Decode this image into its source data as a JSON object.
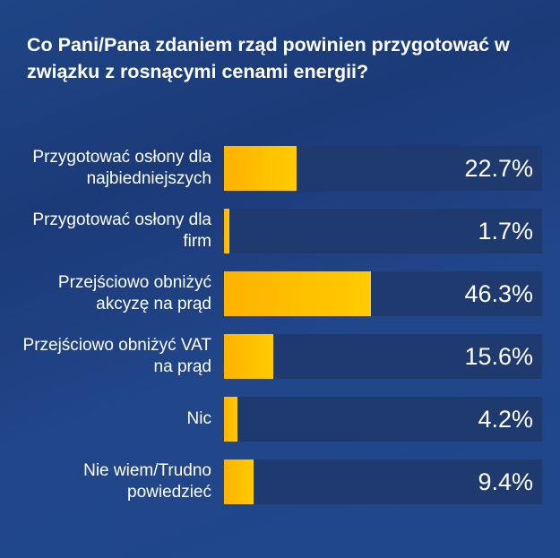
{
  "title": "Co Pani/Pana zdaniem rząd powinien przygotować w związku z rosnącymi cenami energii?",
  "colors": {
    "background": "#1f4586",
    "track": "#1f3a6f",
    "fill_start": "#ffb300",
    "fill_end": "#ffcc00",
    "text": "#ffffff"
  },
  "rows": [
    {
      "label": "Przygotować osłony dla najbiedniejszych",
      "value": 22.7,
      "display": "22.7%"
    },
    {
      "label": "Przygotować osłony dla firm",
      "value": 1.7,
      "display": "1.7%"
    },
    {
      "label": "Przejściowo obniżyć akcyzę na prąd",
      "value": 46.3,
      "display": "46.3%"
    },
    {
      "label": "Przejściowo obniżyć VAT na prąd",
      "value": 15.6,
      "display": "15.6%"
    },
    {
      "label": "Nic",
      "value": 4.2,
      "display": "4.2%"
    },
    {
      "label": "Nie wiem/Trudno powiedzieć",
      "value": 9.4,
      "display": "9.4%"
    }
  ],
  "chart_data": {
    "type": "bar",
    "orientation": "horizontal",
    "title": "Co Pani/Pana zdaniem rząd powinien przygotować w związku z rosnącymi cenami energii?",
    "categories": [
      "Przygotować osłony dla najbiedniejszych",
      "Przygotować osłony dla firm",
      "Przejściowo obniżyć akcyzę na prąd",
      "Przejściowo obniżyć VAT na prąd",
      "Nic",
      "Nie wiem/Trudno powiedzieć"
    ],
    "values": [
      22.7,
      1.7,
      46.3,
      15.6,
      4.2,
      9.4
    ],
    "unit": "%",
    "xlabel": "",
    "ylabel": "",
    "xlim": [
      0,
      100
    ],
    "grid": false,
    "legend": null,
    "data_labels": true
  }
}
